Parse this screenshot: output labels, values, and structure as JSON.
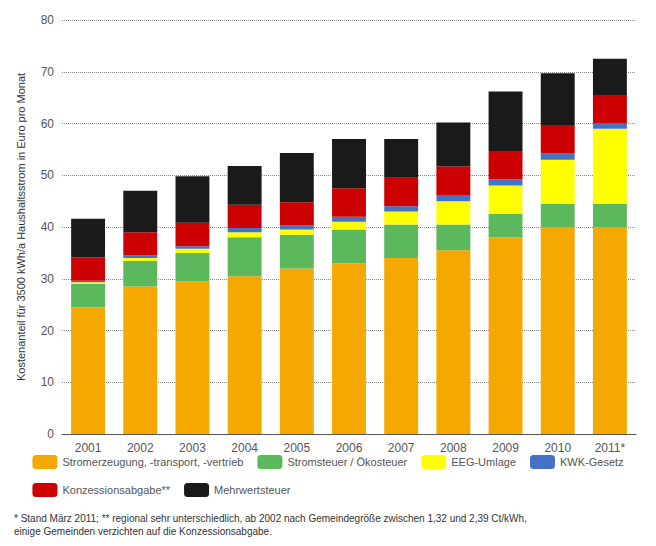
{
  "chart_data": {
    "type": "bar",
    "stacked": true,
    "categories": [
      "2001",
      "2002",
      "2003",
      "2004",
      "2005",
      "2006",
      "2007",
      "2008",
      "2009",
      "2010",
      "2011*"
    ],
    "series": [
      {
        "name": "Stromerzeugung, -transport, -vertrieb",
        "color": "#F5A800",
        "values": [
          24.5,
          28.5,
          29.5,
          30.5,
          32.0,
          33.0,
          34.0,
          35.5,
          38.0,
          40.0,
          40.0
        ]
      },
      {
        "name": "Stromsteuer / Ökosteuer",
        "color": "#5CB85C",
        "values": [
          4.5,
          5.0,
          5.5,
          7.5,
          6.5,
          6.5,
          6.5,
          5.0,
          4.5,
          4.5,
          4.5
        ]
      },
      {
        "name": "EEG-Umlage",
        "color": "#FFFF00",
        "values": [
          0.3,
          0.5,
          0.8,
          1.0,
          1.0,
          1.5,
          2.5,
          4.5,
          5.5,
          8.5,
          14.5
        ]
      },
      {
        "name": "KWK-Gesetz",
        "color": "#4472C4",
        "values": [
          0.3,
          0.5,
          0.5,
          0.8,
          0.8,
          1.0,
          1.0,
          1.2,
          1.2,
          1.2,
          1.0
        ]
      },
      {
        "name": "Konzessionsabgabe**",
        "color": "#CC0000",
        "values": [
          4.5,
          4.5,
          4.5,
          4.5,
          4.5,
          5.5,
          5.5,
          5.5,
          5.5,
          5.5,
          5.5
        ]
      },
      {
        "name": "Mehrwertsteuer",
        "color": "#1A1A1A",
        "values": [
          7.5,
          8.0,
          9.0,
          7.5,
          9.5,
          9.5,
          7.5,
          8.5,
          11.5,
          10.0,
          7.0
        ]
      }
    ],
    "ylabel": "Kostenanteil für 3500 kWh/a Haushaltsstrom in Euro pro Monat",
    "ylim": [
      0,
      80
    ],
    "yticks": [
      0,
      10,
      20,
      30,
      40,
      50,
      60,
      70,
      80
    ],
    "grid": true,
    "legend": "bottom",
    "annotations": [
      "* Stand März 2011; ** regional sehr unterschiedlich, ab 2002 nach Gemeindegröße zwischen 1,32 und 2,39 Ct/kWh,",
      "einige Gemeinden verzichten auf die Konzessionsabgabe."
    ]
  }
}
